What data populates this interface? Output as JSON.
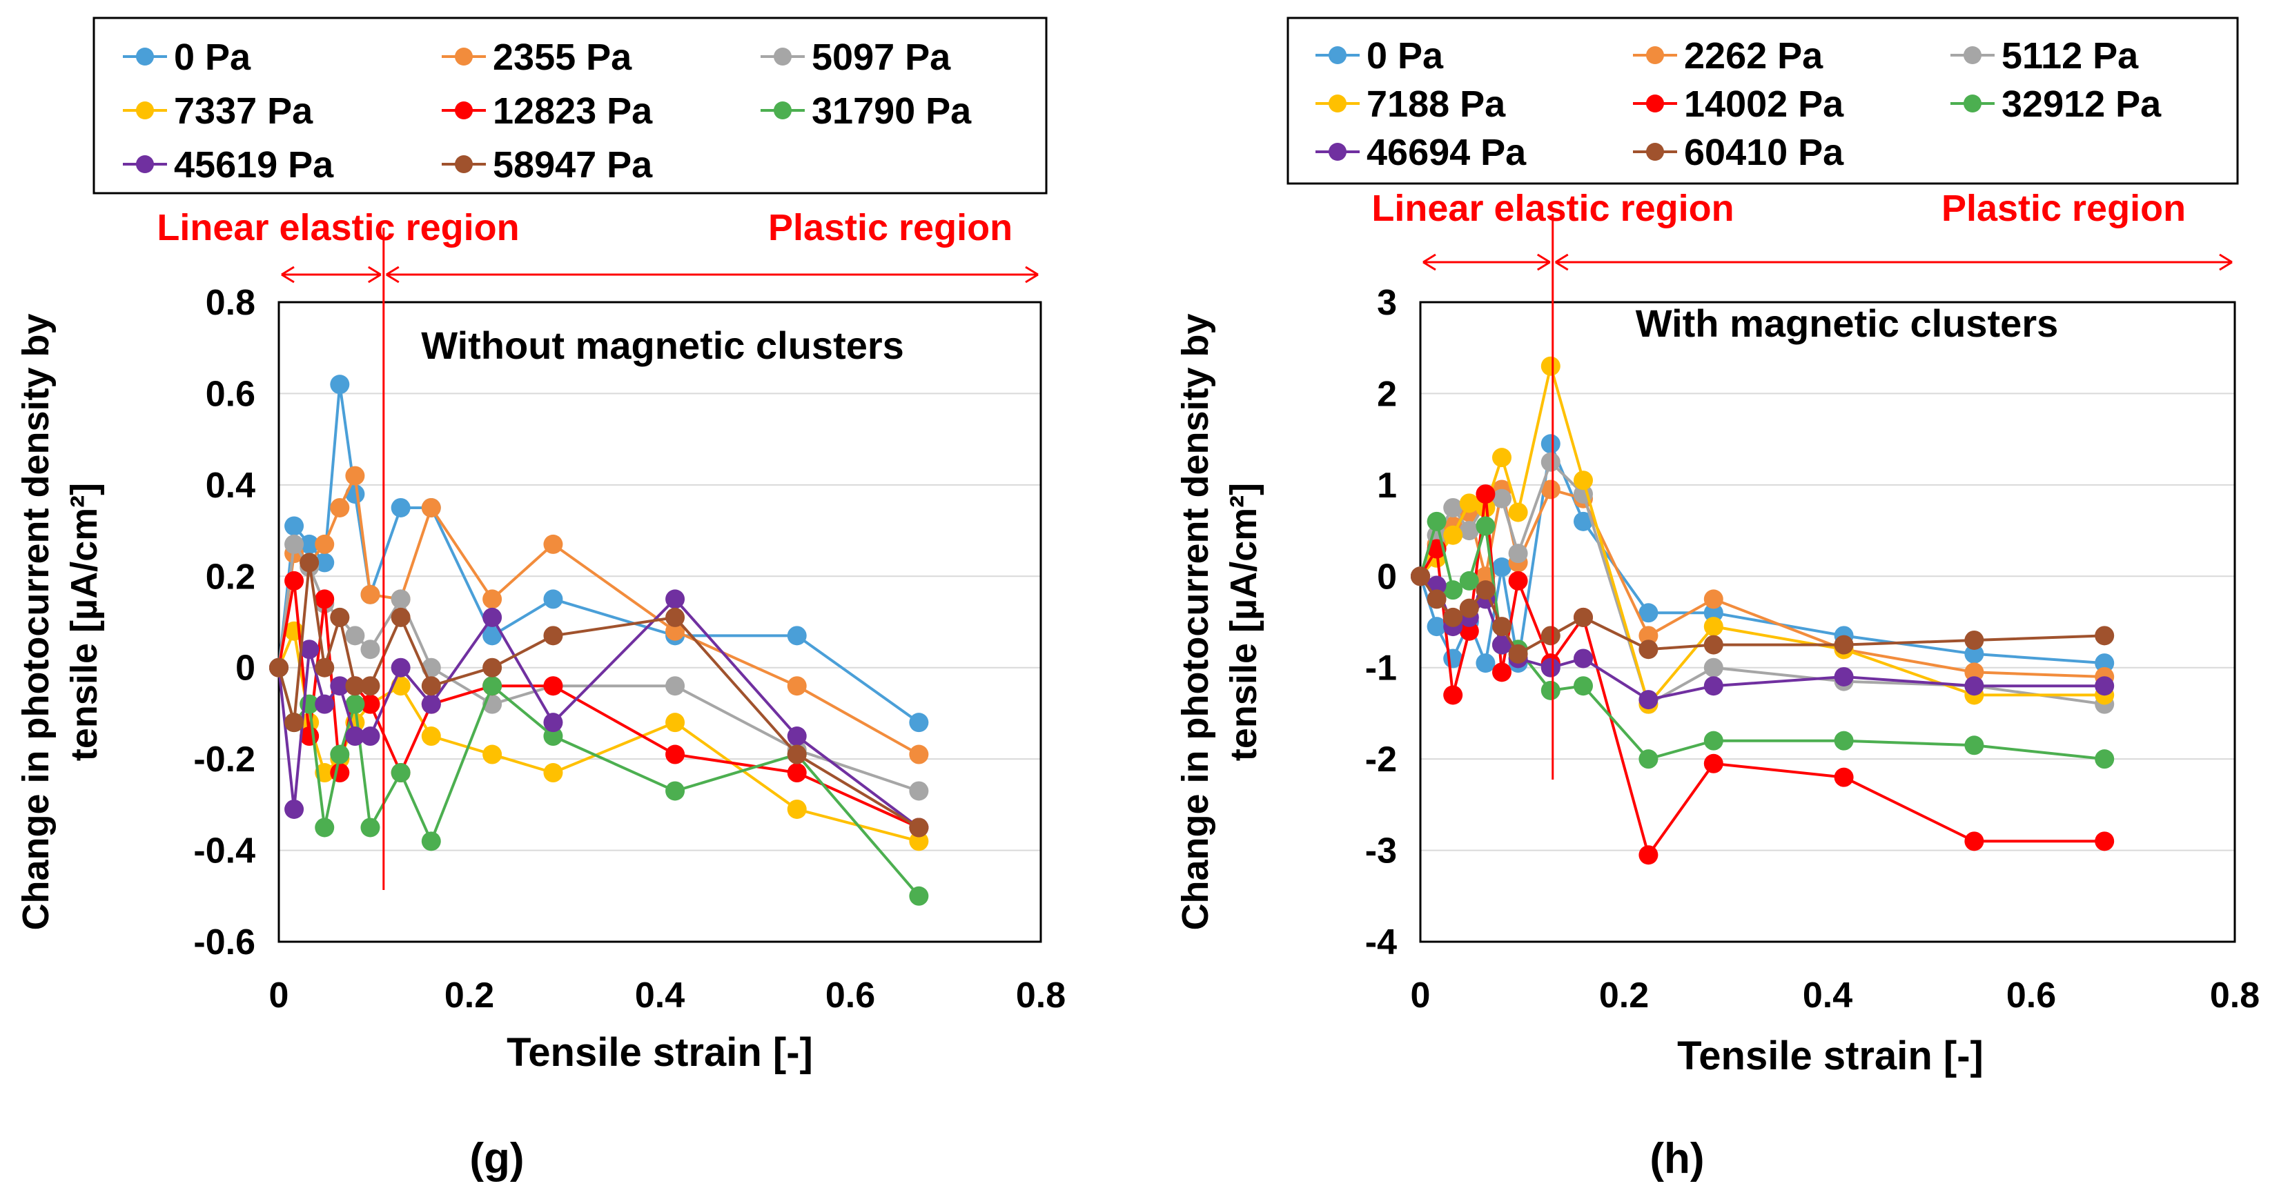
{
  "colors": {
    "series": [
      "#4a9fd8",
      "#f28c3c",
      "#a6a6a6",
      "#ffc000",
      "#ff0000",
      "#4caf50",
      "#7030a0",
      "#a0522d"
    ],
    "annotation": "#ff0000",
    "axis": "#000000",
    "grid": "#d9d9d9"
  },
  "chart_data": [
    {
      "type": "line",
      "panel_label": "(g)",
      "inset_title": "Without magnetic clusters",
      "xlabel": "Tensile strain   [-]",
      "ylabel_line1": "Change in photocurrent density by",
      "ylabel_line2": "tensile  [µA/cm²]",
      "xlim": [
        0,
        0.8
      ],
      "ylim": [
        -0.6,
        0.8
      ],
      "xticks": [
        0,
        0.2,
        0.4,
        0.6,
        0.8
      ],
      "xtick_labels": [
        "0",
        "0.2",
        "0.4",
        "0.6",
        "0.8"
      ],
      "yticks": [
        -0.6,
        -0.4,
        -0.2,
        0,
        0.2,
        0.4,
        0.6,
        0.8
      ],
      "ytick_labels": [
        "-0.6",
        "-0.4",
        "-0.2",
        "0",
        "0.2",
        "0.4",
        "0.6",
        "0.8"
      ],
      "grid": true,
      "legend_position": "top",
      "regions": {
        "boundary_strain": 0.11,
        "end_strain": 0.8,
        "elastic_label": "Linear elastic region",
        "plastic_label": "Plastic region"
      },
      "series": [
        {
          "name": "0 Pa",
          "x": [
            0,
            0.016,
            0.032,
            0.048,
            0.064,
            0.08,
            0.096,
            0.128,
            0.16,
            0.224,
            0.288,
            0.416,
            0.544,
            0.672
          ],
          "y": [
            0,
            0.31,
            0.27,
            0.23,
            0.62,
            0.38,
            0.16,
            0.35,
            0.35,
            0.07,
            0.15,
            0.07,
            0.07,
            -0.12
          ]
        },
        {
          "name": "2355 Pa",
          "x": [
            0,
            0.016,
            0.032,
            0.048,
            0.064,
            0.08,
            0.096,
            0.128,
            0.16,
            0.224,
            0.288,
            0.416,
            0.544,
            0.672
          ],
          "y": [
            0,
            0.25,
            0.23,
            0.27,
            0.35,
            0.42,
            0.16,
            0.15,
            0.35,
            0.15,
            0.27,
            0.08,
            -0.04,
            -0.19
          ]
        },
        {
          "name": "5097 Pa",
          "x": [
            0,
            0.016,
            0.032,
            0.048,
            0.064,
            0.08,
            0.096,
            0.128,
            0.16,
            0.224,
            0.288,
            0.416,
            0.544,
            0.672
          ],
          "y": [
            0,
            0.27,
            0.22,
            0.14,
            0.11,
            0.07,
            0.04,
            0.15,
            0.0,
            -0.08,
            -0.04,
            -0.04,
            -0.18,
            -0.27
          ]
        },
        {
          "name": "7337 Pa",
          "x": [
            0,
            0.016,
            0.032,
            0.048,
            0.064,
            0.08,
            0.096,
            0.128,
            0.16,
            0.224,
            0.288,
            0.416,
            0.544,
            0.672
          ],
          "y": [
            0,
            0.08,
            -0.12,
            -0.23,
            -0.2,
            -0.12,
            -0.08,
            -0.04,
            -0.15,
            -0.19,
            -0.23,
            -0.12,
            -0.31,
            -0.38
          ]
        },
        {
          "name": "12823 Pa",
          "x": [
            0,
            0.016,
            0.032,
            0.048,
            0.064,
            0.08,
            0.096,
            0.128,
            0.16,
            0.224,
            0.288,
            0.416,
            0.544,
            0.672
          ],
          "y": [
            0,
            0.19,
            -0.15,
            0.15,
            -0.23,
            -0.04,
            -0.08,
            -0.23,
            -0.08,
            -0.04,
            -0.04,
            -0.19,
            -0.23,
            -0.35
          ]
        },
        {
          "name": "31790 Pa",
          "x": [
            0,
            0.016,
            0.032,
            0.048,
            0.064,
            0.08,
            0.096,
            0.128,
            0.16,
            0.224,
            0.288,
            0.416,
            0.544,
            0.672
          ],
          "y": [
            0,
            -0.12,
            -0.08,
            -0.35,
            -0.19,
            -0.08,
            -0.35,
            -0.23,
            -0.38,
            -0.04,
            -0.15,
            -0.27,
            -0.19,
            -0.5
          ]
        },
        {
          "name": "45619 Pa",
          "x": [
            0,
            0.016,
            0.032,
            0.048,
            0.064,
            0.08,
            0.096,
            0.128,
            0.16,
            0.224,
            0.288,
            0.416,
            0.544,
            0.672
          ],
          "y": [
            0,
            -0.31,
            0.04,
            -0.08,
            -0.04,
            -0.15,
            -0.15,
            0.0,
            -0.08,
            0.11,
            -0.12,
            0.15,
            -0.15,
            -0.35
          ]
        },
        {
          "name": "58947 Pa",
          "x": [
            0,
            0.016,
            0.032,
            0.048,
            0.064,
            0.08,
            0.096,
            0.128,
            0.16,
            0.224,
            0.288,
            0.416,
            0.544,
            0.672
          ],
          "y": [
            0,
            -0.12,
            0.23,
            0.0,
            0.11,
            -0.04,
            -0.04,
            0.11,
            -0.04,
            0.0,
            0.07,
            0.11,
            -0.19,
            -0.35
          ]
        }
      ]
    },
    {
      "type": "line",
      "panel_label": "(h)",
      "inset_title": "With magnetic clusters",
      "xlabel": "Tensile strain   [-]",
      "ylabel_line1": "Change in photocurrent density by",
      "ylabel_line2": "tensile  [µA/cm²]",
      "xlim": [
        0,
        0.8
      ],
      "ylim": [
        -4,
        3
      ],
      "xticks": [
        0,
        0.2,
        0.4,
        0.6,
        0.8
      ],
      "xtick_labels": [
        "0",
        "0.2",
        "0.4",
        "0.6",
        "0.8"
      ],
      "yticks": [
        -4,
        -3,
        -2,
        -1,
        0,
        1,
        2,
        3
      ],
      "ytick_labels": [
        "-4",
        "-3",
        "-2",
        "-1",
        "0",
        "1",
        "2",
        "3"
      ],
      "grid": true,
      "legend_position": "top",
      "regions": {
        "boundary_strain": 0.13,
        "end_strain": 0.8,
        "elastic_label": "Linear elastic region",
        "plastic_label": "Plastic region"
      },
      "series": [
        {
          "name": "0 Pa",
          "x": [
            0,
            0.016,
            0.032,
            0.048,
            0.064,
            0.08,
            0.096,
            0.128,
            0.16,
            0.224,
            0.288,
            0.416,
            0.544,
            0.672
          ],
          "y": [
            0,
            -0.55,
            -0.9,
            -0.5,
            -0.95,
            0.1,
            -0.95,
            1.45,
            0.6,
            -0.4,
            -0.4,
            -0.65,
            -0.85,
            -0.95
          ]
        },
        {
          "name": "2262 Pa",
          "x": [
            0,
            0.016,
            0.032,
            0.048,
            0.064,
            0.08,
            0.096,
            0.128,
            0.16,
            0.224,
            0.288,
            0.416,
            0.544,
            0.672
          ],
          "y": [
            0,
            0.35,
            0.55,
            0.7,
            0.0,
            0.95,
            0.15,
            0.95,
            0.85,
            -0.65,
            -0.25,
            -0.8,
            -1.05,
            -1.1
          ]
        },
        {
          "name": "5112 Pa",
          "x": [
            0,
            0.016,
            0.032,
            0.048,
            0.064,
            0.08,
            0.096,
            0.128,
            0.16,
            0.224,
            0.288,
            0.416,
            0.544,
            0.672
          ],
          "y": [
            0,
            0.45,
            0.75,
            0.5,
            0.8,
            0.85,
            0.25,
            1.25,
            0.9,
            -1.4,
            -1.0,
            -1.15,
            -1.2,
            -1.4
          ]
        },
        {
          "name": "7188 Pa",
          "x": [
            0,
            0.016,
            0.032,
            0.048,
            0.064,
            0.08,
            0.096,
            0.128,
            0.16,
            0.224,
            0.288,
            0.416,
            0.544,
            0.672
          ],
          "y": [
            0,
            0.2,
            0.45,
            0.8,
            0.75,
            1.3,
            0.7,
            2.3,
            1.05,
            -1.4,
            -0.55,
            -0.8,
            -1.3,
            -1.3
          ]
        },
        {
          "name": "14002 Pa",
          "x": [
            0,
            0.016,
            0.032,
            0.048,
            0.064,
            0.08,
            0.096,
            0.128,
            0.16,
            0.224,
            0.288,
            0.416,
            0.544,
            0.672
          ],
          "y": [
            0,
            0.3,
            -1.3,
            -0.6,
            0.9,
            -1.05,
            -0.05,
            -0.95,
            -0.45,
            -3.05,
            -2.05,
            -2.2,
            -2.9,
            -2.9
          ]
        },
        {
          "name": "32912 Pa",
          "x": [
            0,
            0.016,
            0.032,
            0.048,
            0.064,
            0.08,
            0.096,
            0.128,
            0.16,
            0.224,
            0.288,
            0.416,
            0.544,
            0.672
          ],
          "y": [
            0,
            0.6,
            -0.15,
            -0.05,
            0.55,
            -0.75,
            -0.8,
            -1.25,
            -1.2,
            -2.0,
            -1.8,
            -1.8,
            -1.85,
            -2.0
          ]
        },
        {
          "name": "46694 Pa",
          "x": [
            0,
            0.016,
            0.032,
            0.048,
            0.064,
            0.08,
            0.096,
            0.128,
            0.16,
            0.224,
            0.288,
            0.416,
            0.544,
            0.672
          ],
          "y": [
            0,
            -0.1,
            -0.55,
            -0.45,
            -0.25,
            -0.75,
            -0.9,
            -1.0,
            -0.9,
            -1.35,
            -1.2,
            -1.1,
            -1.2,
            -1.2
          ]
        },
        {
          "name": "60410 Pa",
          "x": [
            0,
            0.016,
            0.032,
            0.048,
            0.064,
            0.08,
            0.096,
            0.128,
            0.16,
            0.224,
            0.288,
            0.416,
            0.544,
            0.672
          ],
          "y": [
            0,
            -0.25,
            -0.45,
            -0.35,
            -0.15,
            -0.55,
            -0.85,
            -0.65,
            -0.45,
            -0.8,
            -0.75,
            -0.75,
            -0.7,
            -0.65
          ]
        }
      ]
    }
  ]
}
